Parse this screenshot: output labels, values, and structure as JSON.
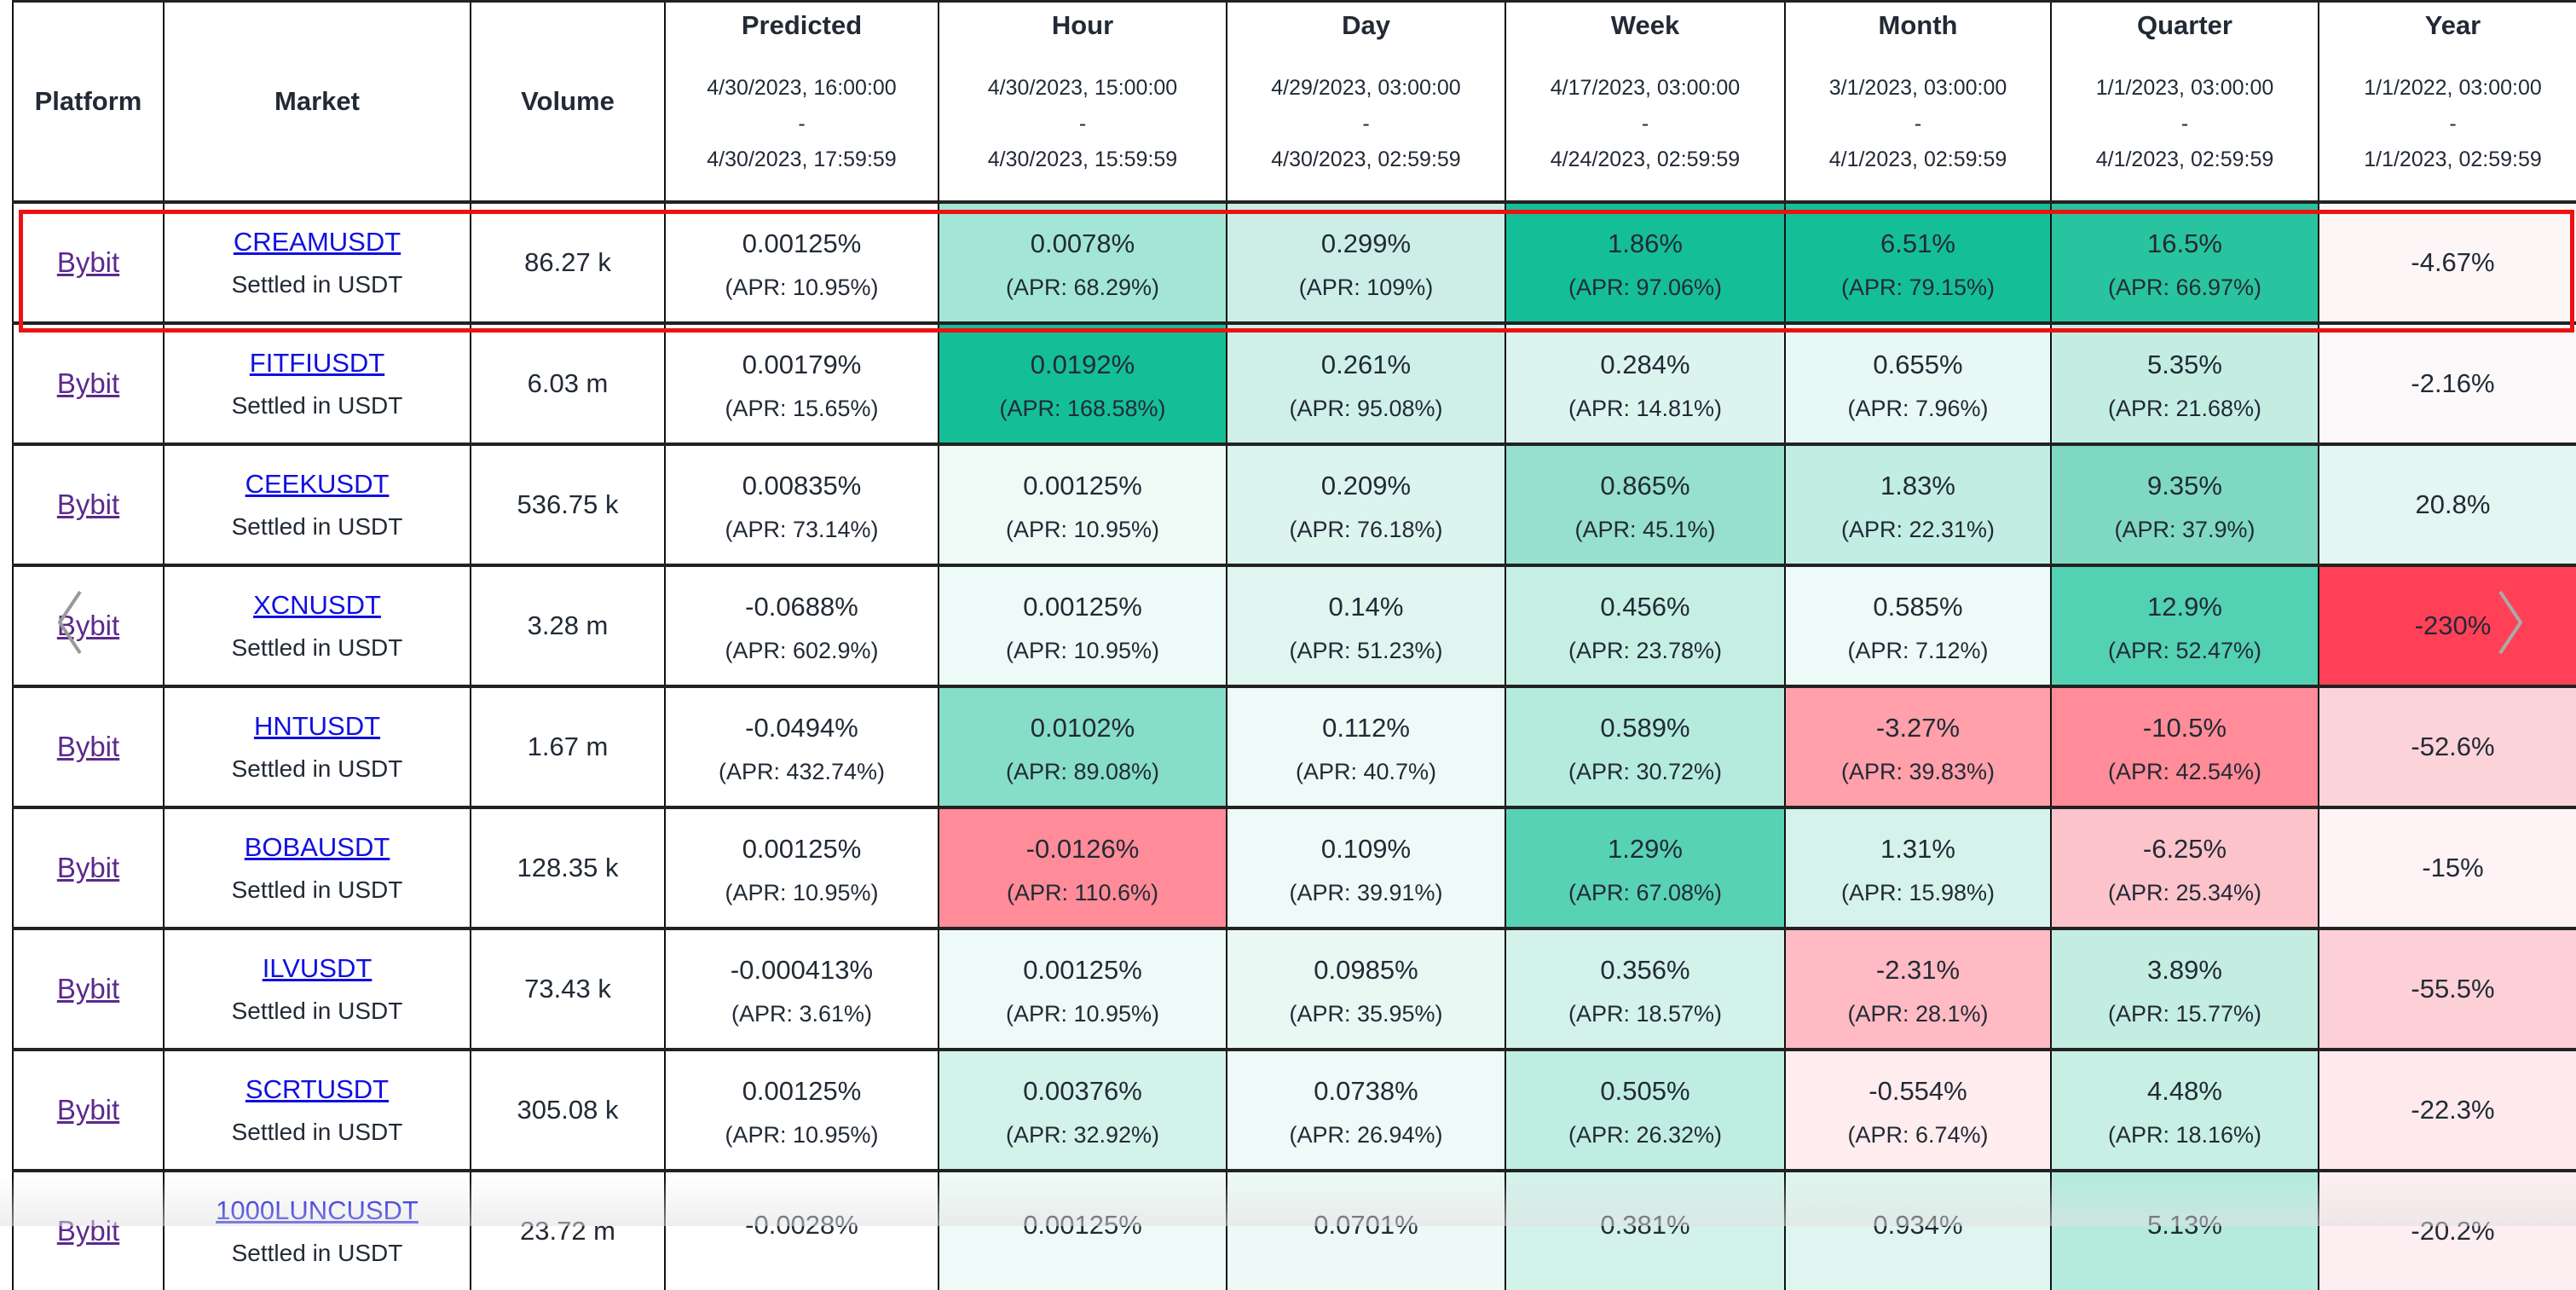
{
  "columns": [
    {
      "title": "Platform"
    },
    {
      "title": "Market"
    },
    {
      "title": "Volume"
    },
    {
      "title": "Predicted",
      "from": "4/30/2023, 16:00:00",
      "sep": "-",
      "to": "4/30/2023, 17:59:59"
    },
    {
      "title": "Hour",
      "from": "4/30/2023, 15:00:00",
      "sep": "-",
      "to": "4/30/2023, 15:59:59"
    },
    {
      "title": "Day",
      "from": "4/29/2023, 03:00:00",
      "sep": "-",
      "to": "4/30/2023, 02:59:59"
    },
    {
      "title": "Week",
      "from": "4/17/2023, 03:00:00",
      "sep": "-",
      "to": "4/24/2023, 02:59:59"
    },
    {
      "title": "Month",
      "from": "3/1/2023, 03:00:00",
      "sep": "-",
      "to": "4/1/2023, 02:59:59"
    },
    {
      "title": "Quarter",
      "from": "1/1/2023, 03:00:00",
      "sep": "-",
      "to": "4/1/2023, 02:59:59"
    },
    {
      "title": "Year",
      "from": "1/1/2022, 03:00:00",
      "sep": "-",
      "to": "1/1/2023, 02:59:59"
    }
  ],
  "rows": [
    {
      "platform": "Bybit",
      "market": "CREAMUSDT",
      "settled": "Settled in USDT",
      "volume": "86.27 k",
      "highlighted": true,
      "cells": [
        {
          "v": "0.00125%",
          "apr": "(APR: 10.95%)",
          "bg": "#ffffff"
        },
        {
          "v": "0.0078%",
          "apr": "(APR: 68.29%)",
          "bg": "#a3e6d6"
        },
        {
          "v": "0.299%",
          "apr": "(APR: 109%)",
          "bg": "#cdeee6"
        },
        {
          "v": "1.86%",
          "apr": "(APR: 97.06%)",
          "bg": "#14bf98"
        },
        {
          "v": "6.51%",
          "apr": "(APR: 79.15%)",
          "bg": "#14bf98"
        },
        {
          "v": "16.5%",
          "apr": "(APR: 66.97%)",
          "bg": "#28c49f"
        },
        {
          "v": "-4.67%",
          "bg": "#fdf6f7"
        }
      ]
    },
    {
      "platform": "Bybit",
      "market": "FITFIUSDT",
      "settled": "Settled in USDT",
      "volume": "6.03 m",
      "cells": [
        {
          "v": "0.00179%",
          "apr": "(APR: 15.65%)",
          "bg": "#ffffff"
        },
        {
          "v": "0.0192%",
          "apr": "(APR: 168.58%)",
          "bg": "#14bf98"
        },
        {
          "v": "0.261%",
          "apr": "(APR: 95.08%)",
          "bg": "#cff0e8"
        },
        {
          "v": "0.284%",
          "apr": "(APR: 14.81%)",
          "bg": "#dcf4ee"
        },
        {
          "v": "0.655%",
          "apr": "(APR: 7.96%)",
          "bg": "#e8f8f4"
        },
        {
          "v": "5.35%",
          "apr": "(APR: 21.68%)",
          "bg": "#c4ede2"
        },
        {
          "v": "-2.16%",
          "bg": "#fdf9fa"
        }
      ]
    },
    {
      "platform": "Bybit",
      "market": "CEEKUSDT",
      "settled": "Settled in USDT",
      "volume": "536.75 k",
      "cells": [
        {
          "v": "0.00835%",
          "apr": "(APR: 73.14%)",
          "bg": "#ffffff"
        },
        {
          "v": "0.00125%",
          "apr": "(APR: 10.95%)",
          "bg": "#effaf7"
        },
        {
          "v": "0.209%",
          "apr": "(APR: 76.18%)",
          "bg": "#dcf4ee"
        },
        {
          "v": "0.865%",
          "apr": "(APR: 45.1%)",
          "bg": "#96e0cd"
        },
        {
          "v": "1.83%",
          "apr": "(APR: 22.31%)",
          "bg": "#c2ede2"
        },
        {
          "v": "9.35%",
          "apr": "(APR: 37.9%)",
          "bg": "#7fd9c2"
        },
        {
          "v": "20.8%",
          "bg": "#e4f6f1"
        }
      ]
    },
    {
      "platform": "Bybit",
      "market": "XCNUSDT",
      "settled": "Settled in USDT",
      "volume": "3.28 m",
      "cells": [
        {
          "v": "-0.0688%",
          "apr": "(APR: 602.9%)",
          "bg": "#ffffff"
        },
        {
          "v": "0.00125%",
          "apr": "(APR: 10.95%)",
          "bg": "#eefaf7"
        },
        {
          "v": "0.14%",
          "apr": "(APR: 51.23%)",
          "bg": "#e0f5ef"
        },
        {
          "v": "0.456%",
          "apr": "(APR: 23.78%)",
          "bg": "#c6efe4"
        },
        {
          "v": "0.585%",
          "apr": "(APR: 7.12%)",
          "bg": "#eefaf7"
        },
        {
          "v": "12.9%",
          "apr": "(APR: 52.47%)",
          "bg": "#52d1b3"
        },
        {
          "v": "-230%",
          "bg": "#ff4056"
        }
      ]
    },
    {
      "platform": "Bybit",
      "market": "HNTUSDT",
      "settled": "Settled in USDT",
      "volume": "1.67 m",
      "cells": [
        {
          "v": "-0.0494%",
          "apr": "(APR: 432.74%)",
          "bg": "#ffffff"
        },
        {
          "v": "0.0102%",
          "apr": "(APR: 89.08%)",
          "bg": "#86ddc8"
        },
        {
          "v": "0.112%",
          "apr": "(APR: 40.7%)",
          "bg": "#eefaf7"
        },
        {
          "v": "0.589%",
          "apr": "(APR: 30.72%)",
          "bg": "#b4ebdd"
        },
        {
          "v": "-3.27%",
          "apr": "(APR: 39.83%)",
          "bg": "#ffa0aa"
        },
        {
          "v": "-10.5%",
          "apr": "(APR: 42.54%)",
          "bg": "#ff8c98"
        },
        {
          "v": "-52.6%",
          "bg": "#fdd3da"
        }
      ]
    },
    {
      "platform": "Bybit",
      "market": "BOBAUSDT",
      "settled": "Settled in USDT",
      "volume": "128.35 k",
      "cells": [
        {
          "v": "0.00125%",
          "apr": "(APR: 10.95%)",
          "bg": "#ffffff"
        },
        {
          "v": "-0.0126%",
          "apr": "(APR: 110.6%)",
          "bg": "#ff8c98"
        },
        {
          "v": "0.109%",
          "apr": "(APR: 39.91%)",
          "bg": "#eefaf7"
        },
        {
          "v": "1.29%",
          "apr": "(APR: 67.08%)",
          "bg": "#58d2b5"
        },
        {
          "v": "1.31%",
          "apr": "(APR: 15.98%)",
          "bg": "#d6f3eb"
        },
        {
          "v": "-6.25%",
          "apr": "(APR: 25.34%)",
          "bg": "#fdc3cb"
        },
        {
          "v": "-15%",
          "bg": "#fff3f5"
        }
      ]
    },
    {
      "platform": "Bybit",
      "market": "ILVUSDT",
      "settled": "Settled in USDT",
      "volume": "73.43 k",
      "cells": [
        {
          "v": "-0.000413%",
          "apr": "(APR: 3.61%)",
          "bg": "#ffffff"
        },
        {
          "v": "0.00125%",
          "apr": "(APR: 10.95%)",
          "bg": "#eefaf7"
        },
        {
          "v": "0.0985%",
          "apr": "(APR: 35.95%)",
          "bg": "#eaf8f4"
        },
        {
          "v": "0.356%",
          "apr": "(APR: 18.57%)",
          "bg": "#d3f2ea"
        },
        {
          "v": "-2.31%",
          "apr": "(APR: 28.1%)",
          "bg": "#ffbac3"
        },
        {
          "v": "3.89%",
          "apr": "(APR: 15.77%)",
          "bg": "#c4ede2"
        },
        {
          "v": "-55.5%",
          "bg": "#fdd0d7"
        }
      ]
    },
    {
      "platform": "Bybit",
      "market": "SCRTUSDT",
      "settled": "Settled in USDT",
      "volume": "305.08 k",
      "cells": [
        {
          "v": "0.00125%",
          "apr": "(APR: 10.95%)",
          "bg": "#ffffff"
        },
        {
          "v": "0.00376%",
          "apr": "(APR: 32.92%)",
          "bg": "#d3f2ea"
        },
        {
          "v": "0.0738%",
          "apr": "(APR: 26.94%)",
          "bg": "#eefaf7"
        },
        {
          "v": "0.505%",
          "apr": "(APR: 26.32%)",
          "bg": "#c0ede1"
        },
        {
          "v": "-0.554%",
          "apr": "(APR: 6.74%)",
          "bg": "#ffecef"
        },
        {
          "v": "4.48%",
          "apr": "(APR: 18.16%)",
          "bg": "#c7efe4"
        },
        {
          "v": "-22.3%",
          "bg": "#feeaed"
        }
      ]
    },
    {
      "platform": "Bybit",
      "market": "1000LUNCUSDT",
      "settled": "Settled in USDT",
      "volume": "23.72 m",
      "cells": [
        {
          "v": "-0.0028%",
          "apr": "",
          "bg": "#ffffff"
        },
        {
          "v": "0.00125%",
          "apr": "",
          "bg": "#eefaf7"
        },
        {
          "v": "0.0701%",
          "apr": "",
          "bg": "#edf9f6"
        },
        {
          "v": "0.381%",
          "apr": "",
          "bg": "#d3f2ea"
        },
        {
          "v": "0.934%",
          "apr": "",
          "bg": "#dff5ef"
        },
        {
          "v": "5.13%",
          "apr": "",
          "bg": "#b4ebdd"
        },
        {
          "v": "-20.2%",
          "bg": "#fdeef1"
        }
      ]
    }
  ],
  "highlight_color": "#ee1111",
  "nav": {
    "prev_icon": "chevron-left-icon",
    "next_icon": "chevron-right-icon"
  }
}
